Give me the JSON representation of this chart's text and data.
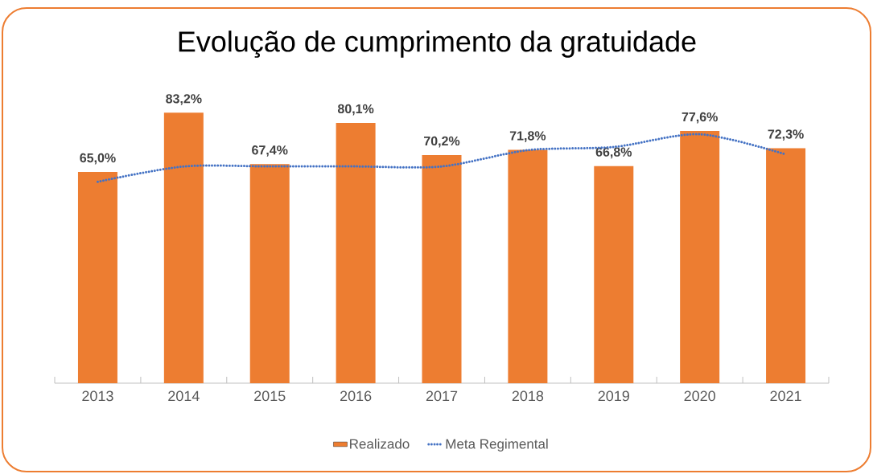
{
  "chart_data": {
    "type": "bar",
    "title": "Evolução de cumprimento da gratuidade",
    "categories": [
      "2013",
      "2014",
      "2015",
      "2016",
      "2017",
      "2018",
      "2019",
      "2020",
      "2021"
    ],
    "series": [
      {
        "name": "Realizado",
        "color": "#ed7d31",
        "values": [
          65.0,
          83.2,
          67.4,
          80.1,
          70.2,
          71.8,
          66.8,
          77.6,
          72.3
        ],
        "value_labels": [
          "65,0%",
          "83,2%",
          "67,4%",
          "80,1%",
          "70,2%",
          "71,8%",
          "66,8%",
          "77,6%",
          "72,3%"
        ]
      },
      {
        "name": "Meta Regimental",
        "type": "line",
        "color": "#4472c4",
        "line_style": "dotted",
        "marker": "none",
        "values": [
          62.0,
          66.7,
          66.7,
          66.7,
          66.7,
          71.7,
          72.7,
          76.6,
          70.4
        ]
      }
    ],
    "legend": "bottom"
  }
}
